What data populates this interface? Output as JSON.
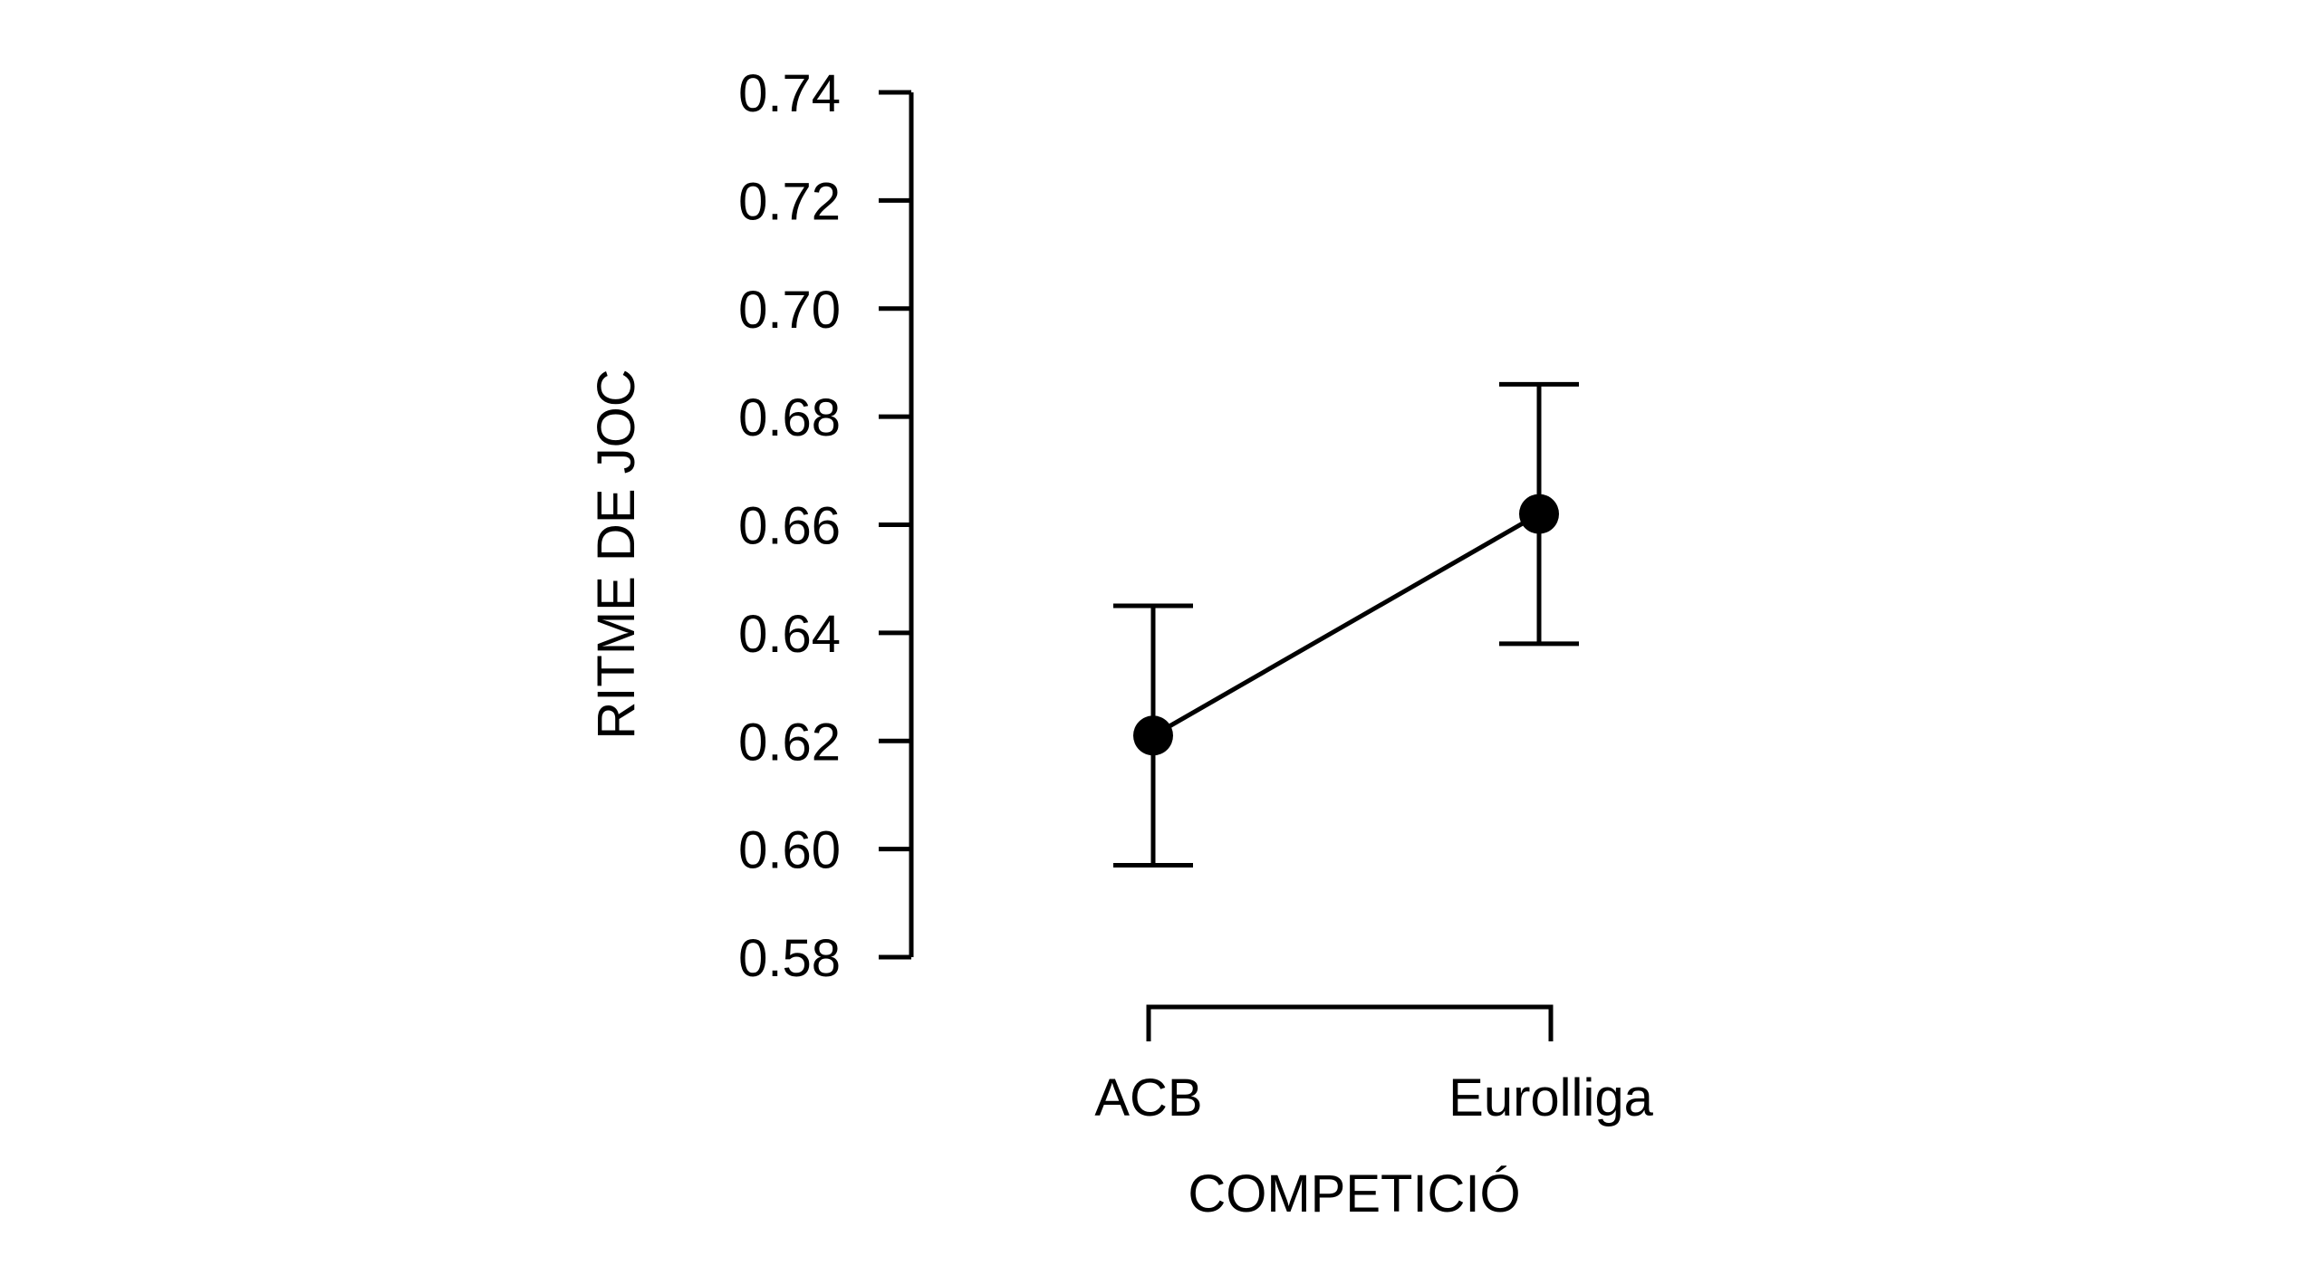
{
  "chart_data": {
    "type": "line",
    "title": "",
    "xlabel": "COMPETICIÓ",
    "ylabel": "RITME DE JOC",
    "categories": [
      "ACB",
      "Eurolliga"
    ],
    "series": [
      {
        "values": [
          0.621,
          0.662
        ],
        "error_lower": [
          0.597,
          0.638
        ],
        "error_upper": [
          0.645,
          0.686
        ]
      }
    ],
    "yticks": [
      "0.58",
      "0.60",
      "0.62",
      "0.64",
      "0.66",
      "0.68",
      "0.70",
      "0.72",
      "0.74"
    ],
    "ylim": [
      0.58,
      0.74
    ],
    "grid": false,
    "legend": "none",
    "colors": {
      "line": "#000000",
      "point": "#000000",
      "axis": "#000000"
    }
  }
}
